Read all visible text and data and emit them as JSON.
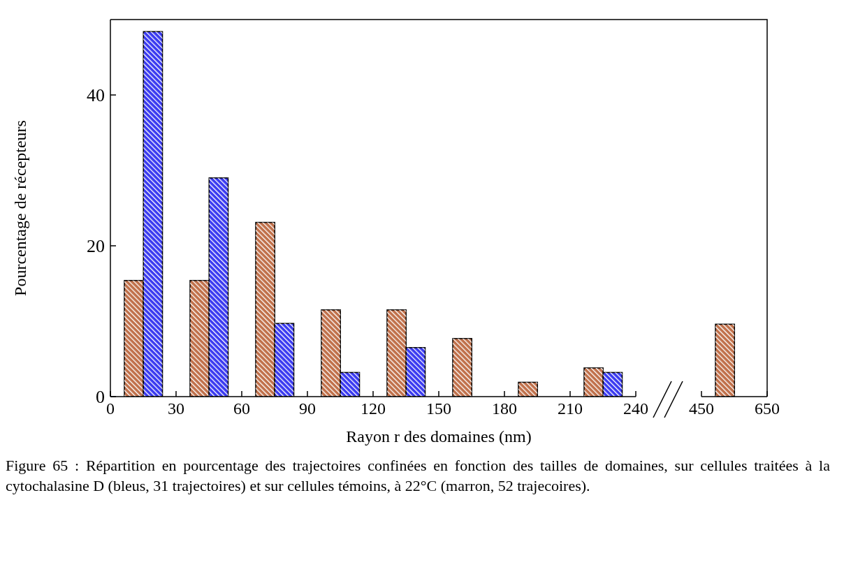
{
  "chart_data": [
    {
      "type": "bar",
      "xlabel": "Rayon r des domaines (nm)",
      "ylabel": "Pourcentage de récepteurs",
      "x": [
        15,
        45,
        75,
        105,
        135,
        165,
        195,
        225
      ],
      "series": [
        {
          "color": "#c0704a",
          "values": [
            15.4,
            15.4,
            23.1,
            11.5,
            11.5,
            7.7,
            1.9,
            3.8
          ]
        },
        {
          "color": "#3a3af0",
          "values": [
            48.4,
            29.0,
            9.7,
            3.2,
            6.5,
            0,
            0,
            3.2
          ]
        }
      ],
      "xlim": [
        0,
        240
      ],
      "xticks": [
        0,
        30,
        60,
        90,
        120,
        150,
        180,
        210,
        240
      ],
      "ylim": [
        0,
        50
      ],
      "yticks": [
        0,
        20,
        40
      ],
      "grid": false,
      "legend": false,
      "annotations": [
        "Figure 65 : Répartition en pourcentage des trajectoires confinées en fonction des tailles de domaines, sur cellules traitées à la cytochalasine D (bleus, 31 trajectoires) et sur cellules témoins, à 22°C (marron, 52 trajecoires)."
      ]
    },
    {
      "type": "bar",
      "x": [
        550
      ],
      "series": [
        {
          "color": "#c0704a",
          "values": [
            9.6
          ]
        },
        {
          "color": "#3a3af0",
          "values": [
            0
          ]
        }
      ],
      "xlim": [
        450,
        650
      ],
      "xticks": [
        450,
        650
      ],
      "ylim": [
        0,
        50
      ],
      "tick_labels": "x",
      "grid": false,
      "legend": false
    }
  ]
}
